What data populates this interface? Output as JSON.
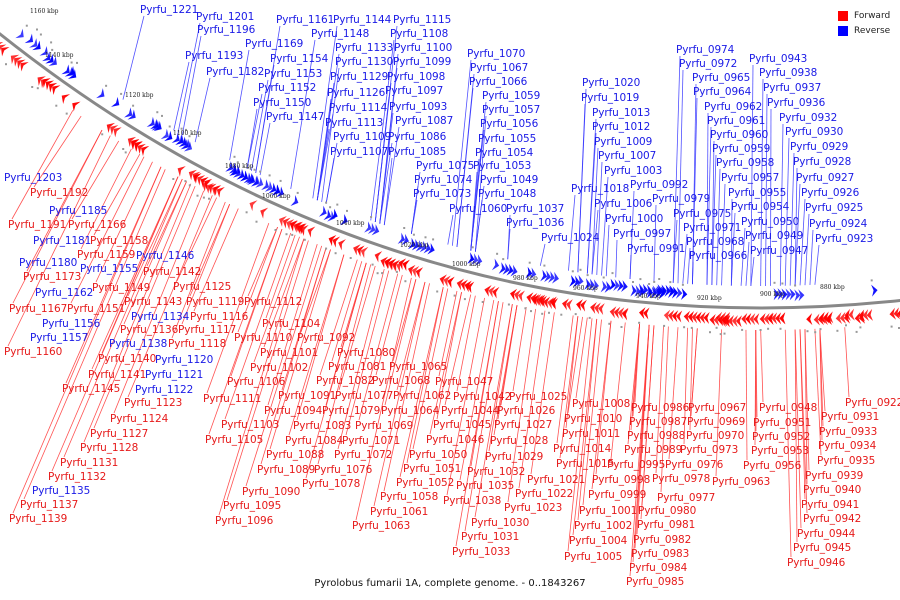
{
  "legend": {
    "items": [
      {
        "label": "Forward",
        "color": "#ff0000"
      },
      {
        "label": "Reverse",
        "color": "#0000ff"
      }
    ]
  },
  "caption": "Pyrolobus fumarii 1A, complete genome. - 0..1843267",
  "colors": {
    "forward": "#ff0000",
    "reverse": "#0000ff",
    "backbone": "#888888",
    "forward_line": "#ff3333",
    "reverse_line": "#3333ff"
  },
  "scale_ticks": [
    "1160 kbp",
    "1140 kbp",
    "1120 kbp",
    "1100 kbp",
    "1080 kbp",
    "1060 kbp",
    "1040 kbp",
    "1020 kbp",
    "1000 kbp",
    "980 kbp",
    "960 kbp",
    "940 kbp",
    "920 kbp",
    "900 kbp",
    "880 kbp"
  ],
  "reverse_labels": [
    "Pyrfu_1221",
    "Pyrfu_1201",
    "Pyrfu_1196",
    "Pyrfu_1193",
    "Pyrfu_1182",
    "Pyrfu_1169",
    "Pyrfu_1161",
    "Pyrfu_1154",
    "Pyrfu_1153",
    "Pyrfu_1152",
    "Pyrfu_1150",
    "Pyrfu_1147",
    "Pyrfu_1144",
    "Pyrfu_1148",
    "Pyrfu_1133",
    "Pyrfu_1130",
    "Pyrfu_1129",
    "Pyrfu_1126",
    "Pyrfu_1114",
    "Pyrfu_1113",
    "Pyrfu_1109",
    "Pyrfu_1107",
    "Pyrfu_1115",
    "Pyrfu_1108",
    "Pyrfu_1100",
    "Pyrfu_1099",
    "Pyrfu_1098",
    "Pyrfu_1097",
    "Pyrfu_1093",
    "Pyrfu_1087",
    "Pyrfu_1086",
    "Pyrfu_1085",
    "Pyrfu_1075",
    "Pyrfu_1074",
    "Pyrfu_1073",
    "Pyrfu_1070",
    "Pyrfu_1067",
    "Pyrfu_1066",
    "Pyrfu_1059",
    "Pyrfu_1057",
    "Pyrfu_1056",
    "Pyrfu_1055",
    "Pyrfu_1054",
    "Pyrfu_1053",
    "Pyrfu_1049",
    "Pyrfu_1048",
    "Pyrfu_1060",
    "Pyrfu_1037",
    "Pyrfu_1036",
    "Pyrfu_1024",
    "Pyrfu_1020",
    "Pyrfu_1019",
    "Pyrfu_1013",
    "Pyrfu_1012",
    "Pyrfu_1009",
    "Pyrfu_1007",
    "Pyrfu_1003",
    "Pyrfu_1018",
    "Pyrfu_0992",
    "Pyrfu_1006",
    "Pyrfu_1000",
    "Pyrfu_0997",
    "Pyrfu_0991",
    "Pyrfu_0979",
    "Pyrfu_0975",
    "Pyrfu_0971",
    "Pyrfu_0968",
    "Pyrfu_0966",
    "Pyrfu_0974",
    "Pyrfu_0972",
    "Pyrfu_0965",
    "Pyrfu_0964",
    "Pyrfu_0962",
    "Pyrfu_0961",
    "Pyrfu_0960",
    "Pyrfu_0959",
    "Pyrfu_0958",
    "Pyrfu_0957",
    "Pyrfu_0955",
    "Pyrfu_0954",
    "Pyrfu_0950",
    "Pyrfu_0949",
    "Pyrfu_0947",
    "Pyrfu_0943",
    "Pyrfu_0938",
    "Pyrfu_0937",
    "Pyrfu_0936",
    "Pyrfu_0932",
    "Pyrfu_0930",
    "Pyrfu_0929",
    "Pyrfu_0928",
    "Pyrfu_0927",
    "Pyrfu_0926",
    "Pyrfu_0925",
    "Pyrfu_0924",
    "Pyrfu_0923",
    "Pyrfu_1203",
    "Pyrfu_1185",
    "Pyrfu_1181",
    "Pyrfu_1180",
    "Pyrfu_1162",
    "Pyrfu_1155",
    "Pyrfu_1146",
    "Pyrfu_1156",
    "Pyrfu_1157",
    "Pyrfu_1134",
    "Pyrfu_1138",
    "Pyrfu_1120",
    "Pyrfu_1121",
    "Pyrfu_1122",
    "Pyrfu_1135"
  ],
  "forward_labels": [
    "Pyrfu_1192",
    "Pyrfu_1191",
    "Pyrfu_1166",
    "Pyrfu_1158",
    "Pyrfu_1159",
    "Pyrfu_1173",
    "Pyrfu_1149",
    "Pyrfu_1167",
    "Pyrfu_1151",
    "Pyrfu_1160",
    "Pyrfu_1142",
    "Pyrfu_1125",
    "Pyrfu_1143",
    "Pyrfu_1119",
    "Pyrfu_1112",
    "Pyrfu_1116",
    "Pyrfu_1136",
    "Pyrfu_1117",
    "Pyrfu_1118",
    "Pyrfu_1140",
    "Pyrfu_1141",
    "Pyrfu_1145",
    "Pyrfu_1123",
    "Pyrfu_1124",
    "Pyrfu_1127",
    "Pyrfu_1128",
    "Pyrfu_1131",
    "Pyrfu_1132",
    "Pyrfu_1137",
    "Pyrfu_1139",
    "Pyrfu_1104",
    "Pyrfu_1110",
    "Pyrfu_1092",
    "Pyrfu_1101",
    "Pyrfu_1102",
    "Pyrfu_1106",
    "Pyrfu_1111",
    "Pyrfu_1103",
    "Pyrfu_1105",
    "Pyrfu_1080",
    "Pyrfu_1081",
    "Pyrfu_1065",
    "Pyrfu_1082",
    "Pyrfu_1068",
    "Pyrfu_1091",
    "Pyrfu_1077",
    "Pyrfu_1062",
    "Pyrfu_1094",
    "Pyrfu_1079",
    "Pyrfu_1064",
    "Pyrfu_1083",
    "Pyrfu_1069",
    "Pyrfu_1084",
    "Pyrfu_1071",
    "Pyrfu_1088",
    "Pyrfu_1072",
    "Pyrfu_1089",
    "Pyrfu_1076",
    "Pyrfu_1078",
    "Pyrfu_1090",
    "Pyrfu_1095",
    "Pyrfu_1096",
    "Pyrfu_1047",
    "Pyrfu_1042",
    "Pyrfu_1025",
    "Pyrfu_1044",
    "Pyrfu_1026",
    "Pyrfu_1045",
    "Pyrfu_1027",
    "Pyrfu_1046",
    "Pyrfu_1028",
    "Pyrfu_1050",
    "Pyrfu_1029",
    "Pyrfu_1051",
    "Pyrfu_1032",
    "Pyrfu_1052",
    "Pyrfu_1035",
    "Pyrfu_1021",
    "Pyrfu_1058",
    "Pyrfu_1038",
    "Pyrfu_1022",
    "Pyrfu_1061",
    "Pyrfu_1023",
    "Pyrfu_1063",
    "Pyrfu_1030",
    "Pyrfu_1031",
    "Pyrfu_1033",
    "Pyrfu_1008",
    "Pyrfu_1010",
    "Pyrfu_1011",
    "Pyrfu_1014",
    "Pyrfu_1015",
    "Pyrfu_0998",
    "Pyrfu_0999",
    "Pyrfu_1001",
    "Pyrfu_1002",
    "Pyrfu_1004",
    "Pyrfu_1005",
    "Pyrfu_0986",
    "Pyrfu_0987",
    "Pyrfu_0988",
    "Pyrfu_0989",
    "Pyrfu_0995",
    "Pyrfu_0978",
    "Pyrfu_0977",
    "Pyrfu_0980",
    "Pyrfu_0981",
    "Pyrfu_0982",
    "Pyrfu_0983",
    "Pyrfu_0984",
    "Pyrfu_0985",
    "Pyrfu_0967",
    "Pyrfu_0969",
    "Pyrfu_0970",
    "Pyrfu_0973",
    "Pyrfu_0976",
    "Pyrfu_0963",
    "Pyrfu_0948",
    "Pyrfu_0951",
    "Pyrfu_0952",
    "Pyrfu_0953",
    "Pyrfu_0956",
    "Pyrfu_0922",
    "Pyrfu_0931",
    "Pyrfu_0933",
    "Pyrfu_0934",
    "Pyrfu_0935",
    "Pyrfu_0939",
    "Pyrfu_0940",
    "Pyrfu_0941",
    "Pyrfu_0942",
    "Pyrfu_0944",
    "Pyrfu_0945",
    "Pyrfu_0946"
  ]
}
